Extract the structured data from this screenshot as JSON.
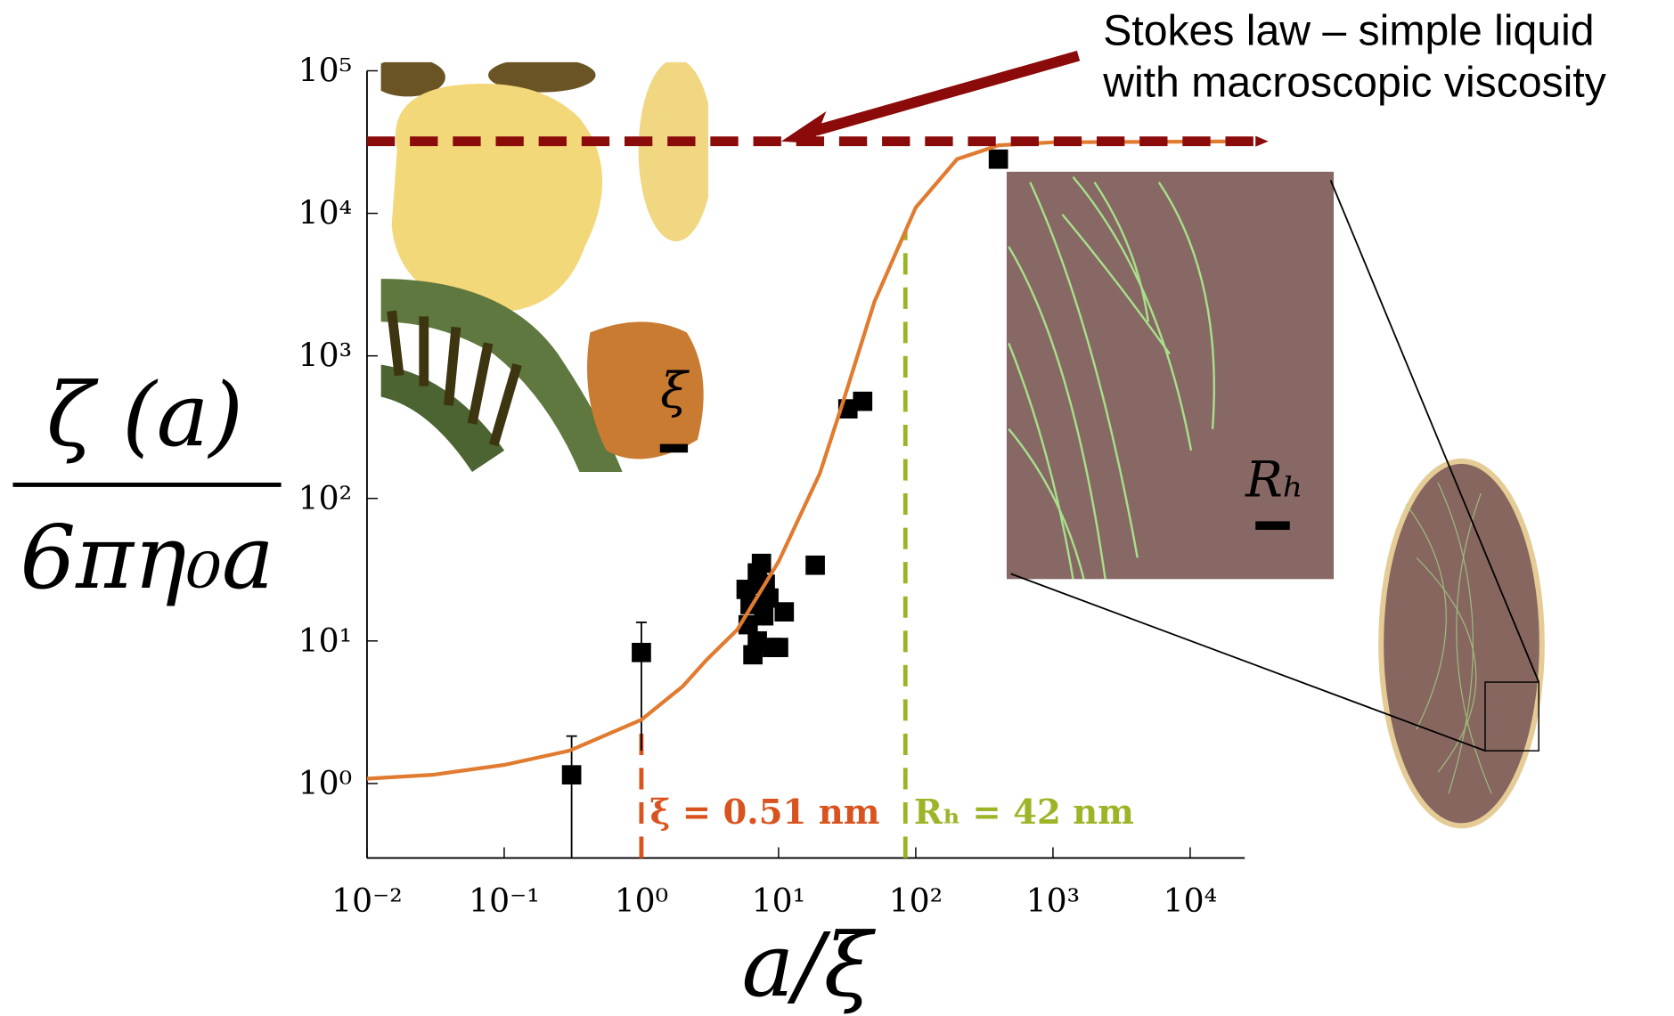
{
  "chart_data": {
    "type": "scatter",
    "xlabel": "a/ξ",
    "ylabel": {
      "numerator": "ζ (a)",
      "denominator": "6πη₀a"
    },
    "xscale": "log",
    "yscale": "log",
    "xlim": [
      0.01,
      25000
    ],
    "ylim": [
      0.3,
      100000
    ],
    "xticks": [
      {
        "value": 0.01,
        "label": "10⁻²"
      },
      {
        "value": 0.1,
        "label": "10⁻¹"
      },
      {
        "value": 1,
        "label": "10⁰"
      },
      {
        "value": 10,
        "label": "10¹"
      },
      {
        "value": 100,
        "label": "10²"
      },
      {
        "value": 1000,
        "label": "10³"
      },
      {
        "value": 10000,
        "label": "10⁴"
      }
    ],
    "yticks": [
      {
        "value": 1,
        "label": "10⁰"
      },
      {
        "value": 10,
        "label": "10¹"
      },
      {
        "value": 100,
        "label": "10²"
      },
      {
        "value": 1000,
        "label": "10³"
      },
      {
        "value": 10000,
        "label": "10⁴"
      },
      {
        "value": 100000,
        "label": "10⁵"
      }
    ],
    "series": [
      {
        "type": "scatter",
        "color": "#000000",
        "x": [
          0.31,
          1.0,
          5.8,
          6.0,
          6.5,
          7.0,
          7.5,
          8.0,
          7.0,
          8.5,
          9.0,
          10,
          11,
          6.2,
          7.8,
          18.5,
          32,
          41,
          400
        ],
        "values": [
          1.15,
          8.3,
          23,
          13,
          8,
          30,
          35,
          25,
          10,
          20,
          9,
          9,
          16,
          18,
          15,
          34,
          425,
          480,
          24000
        ],
        "error_low": [
          0.85,
          6.6,
          null,
          null,
          null,
          null,
          null,
          null,
          null,
          null,
          null,
          null,
          null,
          null,
          null,
          null,
          null,
          null,
          null
        ],
        "error_high": [
          1.0,
          5.2,
          null,
          null,
          null,
          null,
          null,
          null,
          null,
          null,
          null,
          null,
          null,
          null,
          null,
          null,
          null,
          null,
          null
        ]
      },
      {
        "type": "line",
        "color": "#e07b2f",
        "x": [
          0.01,
          0.03,
          0.1,
          0.3,
          1,
          2,
          3,
          5,
          10,
          20,
          30,
          50,
          100,
          200,
          400,
          1000,
          25000
        ],
        "values": [
          1.08,
          1.15,
          1.35,
          1.7,
          2.8,
          4.8,
          7.4,
          12,
          36,
          150,
          500,
          2400,
          11000,
          24000,
          30000,
          31500,
          32000
        ]
      }
    ],
    "hlines": [
      {
        "y": 32000,
        "color": "#8b0a0a"
      }
    ],
    "vlines": [
      {
        "x": 1,
        "color": "#d9531e",
        "label": "ξ = 0.51 nm"
      },
      {
        "x": 84,
        "color": "#9bb526",
        "label": "Rₕ = 42 nm"
      }
    ],
    "annotation": {
      "lines": [
        "Stokes law – simple liquid",
        "with macroscopic viscosity"
      ],
      "arrow_color": "#8b0a0a"
    },
    "inset_labels": [
      "ξ",
      "Rₕ"
    ]
  }
}
